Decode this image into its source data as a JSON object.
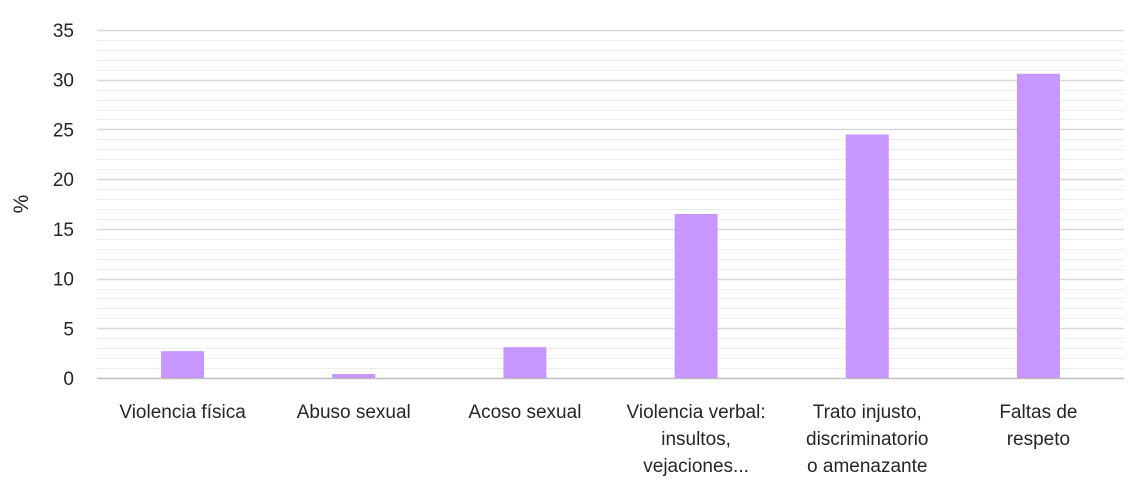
{
  "chart_data": {
    "type": "bar",
    "title": "",
    "xlabel": "",
    "ylabel": "%",
    "ylim": [
      0,
      35
    ],
    "yticks": [
      0,
      5,
      10,
      15,
      20,
      25,
      30,
      35
    ],
    "grid": true,
    "legend": "none",
    "colors": {
      "bar": "#C697FF",
      "major_grid": "#D9D9D9",
      "minor_grid": "#EDEDED",
      "axis_line": "#BFBFBF"
    },
    "categories": [
      [
        "Violencia física"
      ],
      [
        "Abuso sexual"
      ],
      [
        "Acoso sexual"
      ],
      [
        "Violencia verbal:",
        "insultos,",
        "vejaciones..."
      ],
      [
        "Trato injusto,",
        "discriminatorio",
        "o amenazante"
      ],
      [
        "Faltas de",
        "respeto"
      ]
    ],
    "values": [
      2.7,
      0.4,
      3.1,
      16.5,
      24.5,
      30.6
    ]
  }
}
